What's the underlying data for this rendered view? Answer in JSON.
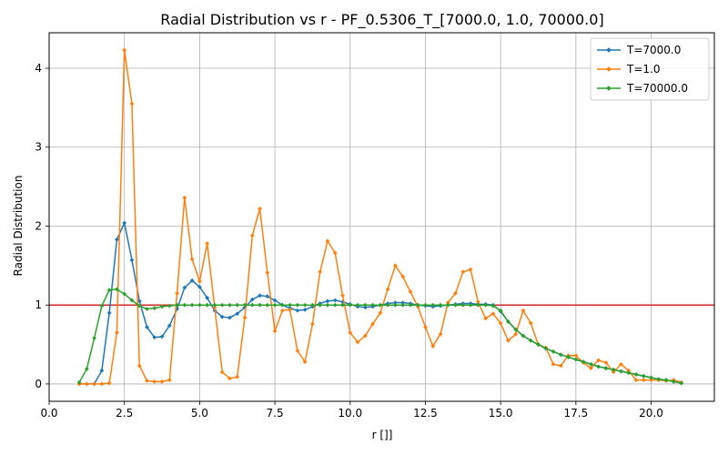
{
  "chart_data": {
    "type": "line",
    "title": "Radial Distribution vs r - PF_0.5306_T_[7000.0, 1.0, 70000.0]",
    "xlabel": "r []]",
    "ylabel": "Radial Distribution",
    "xlim": [
      0,
      22.1
    ],
    "ylim": [
      -0.22,
      4.45
    ],
    "xticks": [
      0,
      2.5,
      5,
      7.5,
      10,
      12.5,
      15,
      17.5,
      20
    ],
    "xtick_labels": [
      "0.0",
      "2.5",
      "5.0",
      "7.5",
      "10.0",
      "12.5",
      "15.0",
      "17.5",
      "20.0"
    ],
    "yticks": [
      0,
      1,
      2,
      3,
      4
    ],
    "ytick_labels": [
      "0",
      "1",
      "2",
      "3",
      "4"
    ],
    "grid": true,
    "legend_position": "top-right",
    "reference_line": {
      "y": 1.0,
      "color": "#d62728"
    },
    "series": [
      {
        "name": "T=7000.0",
        "color": "#1f77b4",
        "x": [
          1.0,
          1.25,
          1.5,
          1.75,
          2.0,
          2.25,
          2.5,
          2.75,
          3.0,
          3.25,
          3.5,
          3.75,
          4.0,
          4.25,
          4.5,
          4.75,
          5.0,
          5.25,
          5.5,
          5.75,
          6.0,
          6.25,
          6.5,
          6.75,
          7.0,
          7.25,
          7.5,
          7.75,
          8.0,
          8.25,
          8.5,
          8.75,
          9.0,
          9.25,
          9.5,
          9.75,
          10.0,
          10.25,
          10.5,
          10.75,
          11.0,
          11.25,
          11.5,
          11.75,
          12.0,
          12.25,
          12.5,
          12.75,
          13.0,
          13.25,
          13.5,
          13.75,
          14.0,
          14.25,
          14.5,
          14.75,
          15.0,
          15.25,
          15.5,
          15.75,
          16.0,
          16.25,
          16.5,
          16.75,
          17.0,
          17.25,
          17.5,
          17.75,
          18.0,
          18.25,
          18.5,
          18.75,
          19.0,
          19.25,
          19.5,
          19.75,
          20.0,
          20.25,
          20.5,
          20.75,
          21.0
        ],
        "y": [
          0.0,
          0.0,
          0.0,
          0.17,
          0.9,
          1.83,
          2.04,
          1.57,
          1.05,
          0.72,
          0.59,
          0.6,
          0.74,
          0.95,
          1.22,
          1.31,
          1.23,
          1.09,
          0.93,
          0.85,
          0.84,
          0.89,
          0.97,
          1.07,
          1.12,
          1.11,
          1.06,
          1.0,
          0.96,
          0.93,
          0.94,
          0.98,
          1.02,
          1.05,
          1.06,
          1.04,
          1.01,
          0.98,
          0.97,
          0.98,
          1.0,
          1.02,
          1.03,
          1.03,
          1.02,
          1.0,
          0.99,
          0.98,
          0.99,
          1.0,
          1.01,
          1.02,
          1.02,
          1.01,
          1.01,
          1.0,
          0.92,
          0.79,
          0.69,
          0.61,
          0.55,
          0.5,
          0.45,
          0.41,
          0.37,
          0.34,
          0.31,
          0.28,
          0.25,
          0.22,
          0.2,
          0.18,
          0.16,
          0.14,
          0.12,
          0.1,
          0.08,
          0.06,
          0.05,
          0.03,
          0.01
        ]
      },
      {
        "name": "T=1.0",
        "color": "#ff7f0e",
        "x": [
          1.0,
          1.25,
          1.5,
          1.75,
          2.0,
          2.25,
          2.5,
          2.75,
          3.0,
          3.25,
          3.5,
          3.75,
          4.0,
          4.25,
          4.5,
          4.75,
          5.0,
          5.25,
          5.5,
          5.75,
          6.0,
          6.25,
          6.5,
          6.75,
          7.0,
          7.25,
          7.5,
          7.75,
          8.0,
          8.25,
          8.5,
          8.75,
          9.0,
          9.25,
          9.5,
          9.75,
          10.0,
          10.25,
          10.5,
          10.75,
          11.0,
          11.25,
          11.5,
          11.75,
          12.0,
          12.25,
          12.5,
          12.75,
          13.0,
          13.25,
          13.5,
          13.75,
          14.0,
          14.25,
          14.5,
          14.75,
          15.0,
          15.25,
          15.5,
          15.75,
          16.0,
          16.25,
          16.5,
          16.75,
          17.0,
          17.25,
          17.5,
          17.75,
          18.0,
          18.25,
          18.5,
          18.75,
          19.0,
          19.25,
          19.5,
          19.75,
          20.0,
          20.25,
          20.5,
          20.75,
          21.0
        ],
        "y": [
          0.0,
          0.0,
          0.0,
          0.0,
          0.01,
          0.65,
          4.23,
          3.55,
          0.23,
          0.04,
          0.03,
          0.03,
          0.05,
          1.15,
          2.36,
          1.58,
          1.3,
          1.78,
          0.97,
          0.15,
          0.07,
          0.09,
          0.84,
          1.88,
          2.22,
          1.41,
          0.67,
          0.93,
          0.94,
          0.42,
          0.28,
          0.76,
          1.42,
          1.81,
          1.66,
          1.12,
          0.65,
          0.53,
          0.61,
          0.76,
          0.9,
          1.2,
          1.5,
          1.36,
          1.17,
          0.98,
          0.72,
          0.48,
          0.63,
          1.03,
          1.15,
          1.42,
          1.45,
          1.04,
          0.83,
          0.89,
          0.77,
          0.55,
          0.63,
          0.93,
          0.77,
          0.5,
          0.46,
          0.25,
          0.23,
          0.36,
          0.36,
          0.27,
          0.2,
          0.3,
          0.27,
          0.15,
          0.25,
          0.17,
          0.05,
          0.05,
          0.05,
          0.05,
          0.04,
          0.05,
          0.02
        ]
      },
      {
        "name": "T=70000.0",
        "color": "#2ca02c",
        "x": [
          1.0,
          1.25,
          1.5,
          1.75,
          2.0,
          2.25,
          2.5,
          2.75,
          3.0,
          3.25,
          3.5,
          3.75,
          4.0,
          4.25,
          4.5,
          4.75,
          5.0,
          5.25,
          5.5,
          5.75,
          6.0,
          6.25,
          6.5,
          6.75,
          7.0,
          7.25,
          7.5,
          7.75,
          8.0,
          8.25,
          8.5,
          8.75,
          9.0,
          9.25,
          9.5,
          9.75,
          10.0,
          10.25,
          10.5,
          10.75,
          11.0,
          11.25,
          11.5,
          11.75,
          12.0,
          12.25,
          12.5,
          12.75,
          13.0,
          13.25,
          13.5,
          13.75,
          14.0,
          14.25,
          14.5,
          14.75,
          15.0,
          15.25,
          15.5,
          15.75,
          16.0,
          16.25,
          16.5,
          16.75,
          17.0,
          17.25,
          17.5,
          17.75,
          18.0,
          18.25,
          18.5,
          18.75,
          19.0,
          19.25,
          19.5,
          19.75,
          20.0,
          20.25,
          20.5,
          20.75,
          21.0
        ],
        "y": [
          0.02,
          0.19,
          0.58,
          0.99,
          1.19,
          1.2,
          1.14,
          1.06,
          0.99,
          0.95,
          0.96,
          0.98,
          0.99,
          1.0,
          1.0,
          1.0,
          1.0,
          1.0,
          1.0,
          1.0,
          1.0,
          1.0,
          1.0,
          1.0,
          1.0,
          1.0,
          1.0,
          1.0,
          1.0,
          1.0,
          1.0,
          1.0,
          1.0,
          1.0,
          1.0,
          1.0,
          1.0,
          1.0,
          1.0,
          1.0,
          1.0,
          1.0,
          1.0,
          1.0,
          1.0,
          1.0,
          1.0,
          1.0,
          1.0,
          1.0,
          1.0,
          1.0,
          1.0,
          1.0,
          1.0,
          0.99,
          0.93,
          0.79,
          0.69,
          0.61,
          0.55,
          0.5,
          0.45,
          0.41,
          0.37,
          0.34,
          0.31,
          0.28,
          0.25,
          0.22,
          0.2,
          0.18,
          0.16,
          0.14,
          0.12,
          0.1,
          0.08,
          0.06,
          0.05,
          0.03,
          0.01
        ]
      }
    ]
  }
}
